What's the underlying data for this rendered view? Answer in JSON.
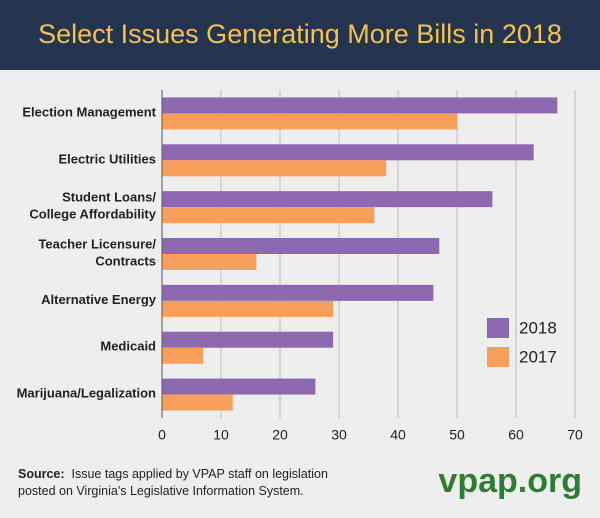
{
  "chart_data": {
    "type": "hbar",
    "title": "Select Issues Generating More Bills in 2018",
    "categories": [
      "Election Management",
      "Electric Utilities",
      "Student Loans/\nCollege Affordability",
      "Teacher Licensure/\nContracts",
      "Alternative Energy",
      "Medicaid",
      "Marijuana/Legalization"
    ],
    "series": [
      {
        "name": "2018",
        "color": "#8d6aaf",
        "values": [
          67,
          63,
          56,
          47,
          46,
          29,
          26
        ]
      },
      {
        "name": "2017",
        "color": "#f8a05b",
        "values": [
          50,
          38,
          36,
          16,
          29,
          7,
          12
        ]
      }
    ],
    "xlim": [
      0,
      70
    ],
    "xticks": [
      0,
      10,
      20,
      30,
      40,
      50,
      60,
      70
    ],
    "grid": true,
    "legend": "lower right"
  },
  "footer": {
    "source_label": "Source:",
    "source_text": "Issue tags applied by VPAP staff on legislation\nposted on Virginia's Legislative Information System.",
    "brand": "vpap.org"
  }
}
